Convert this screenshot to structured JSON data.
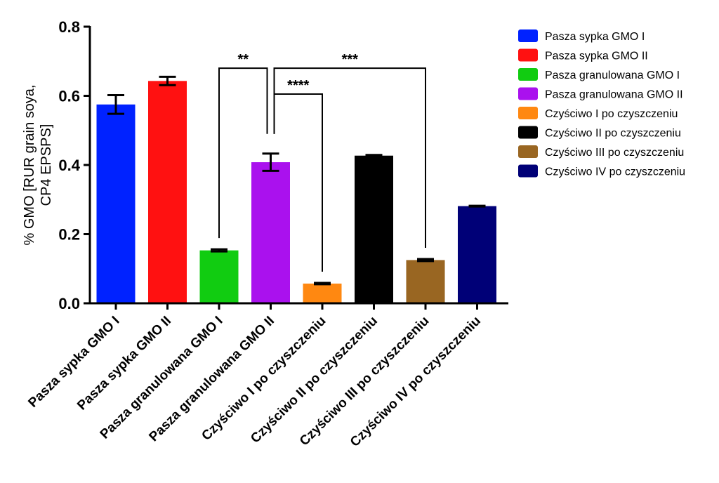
{
  "chart_data": {
    "type": "bar",
    "categories": [
      "Pasza sypka GMO I",
      "Pasza sypka GMO II",
      "Pasza granulowana GMO I",
      "Pasza granulowana GMO II",
      "Czyściwo I po czyszczeniu",
      "Czyściwo II po czyszczeniu",
      "Czyściwo III po czyszczeniu",
      "Czyściwo IV po czyszczeniu"
    ],
    "values": [
      0.575,
      0.643,
      0.153,
      0.408,
      0.057,
      0.427,
      0.125,
      0.281
    ],
    "errors": [
      0.027,
      0.012,
      0.003,
      0.025,
      0.002,
      0.002,
      0.003,
      0.001
    ],
    "colors": [
      "#0022ff",
      "#ff1111",
      "#11cc11",
      "#aa11ee",
      "#ff8811",
      "#000000",
      "#996622",
      "#000077"
    ],
    "ylabel_lines": [
      "% GMO [RUR grain soya,",
      "CP4 EPSPS]"
    ],
    "xlabel": "",
    "ylim": [
      0,
      0.8
    ],
    "yticks": [
      "0.0",
      "0.2",
      "0.4",
      "0.6",
      "0.8"
    ],
    "legend": {
      "position": "right",
      "entries": [
        "Pasza sypka GMO I",
        "Pasza sypka GMO II",
        "Pasza granulowana GMO I",
        "Pasza granulowana GMO II",
        "Czyściwo I po czyszczeniu",
        "Czyściwo II po czyszczeniu",
        "Czyściwo III po czyszczeniu",
        "Czyściwo IV po czyszczeniu"
      ]
    },
    "significance": [
      {
        "from": 3,
        "to": 2,
        "label": "**",
        "level": 0.68
      },
      {
        "from": 3,
        "to": 6,
        "label": "***",
        "level": 0.68
      },
      {
        "from": 3,
        "to": 4,
        "label": "****",
        "level": 0.605
      }
    ]
  }
}
